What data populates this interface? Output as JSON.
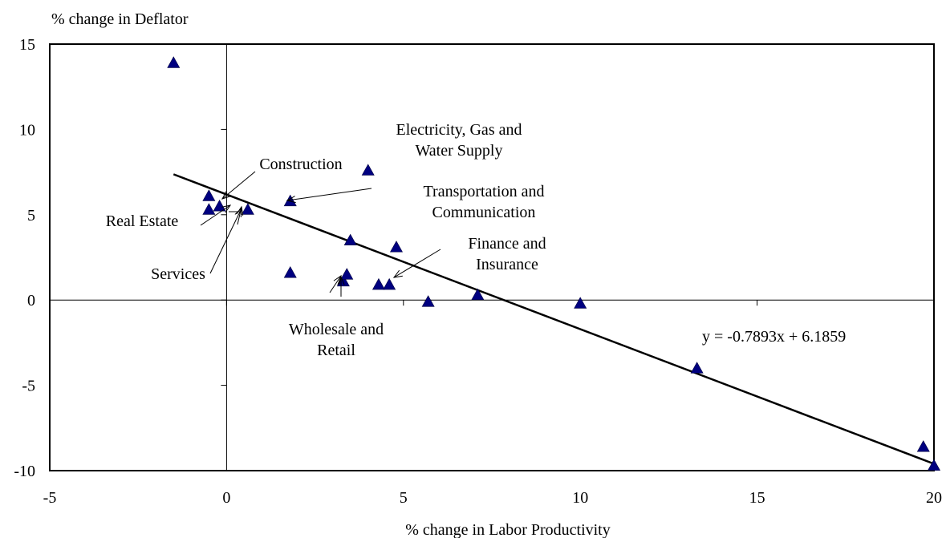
{
  "chart_data": {
    "type": "scatter",
    "title": "",
    "xlabel": "% change in Labor Productivity",
    "ylabel": "% change in Deflator",
    "xlim": [
      -5,
      20
    ],
    "ylim": [
      -10,
      15
    ],
    "x_ticks": [
      -5,
      0,
      5,
      10,
      15,
      20
    ],
    "y_ticks": [
      -10,
      -5,
      0,
      5,
      10,
      15
    ],
    "x_tick_labels": [
      "-5",
      "0",
      "5",
      "10",
      "15",
      "20"
    ],
    "y_tick_labels": [
      "-10",
      "-5",
      "0",
      "5",
      "10",
      "15"
    ],
    "grid": false,
    "legend": "none",
    "marker": "triangle",
    "marker_color": "#000080",
    "series": [
      {
        "points": [
          {
            "x": -1.5,
            "y": 13.9
          },
          {
            "x": -0.5,
            "y": 6.1
          },
          {
            "x": -0.5,
            "y": 5.3
          },
          {
            "x": -0.2,
            "y": 5.5
          },
          {
            "x": 0.6,
            "y": 5.3
          },
          {
            "x": 1.8,
            "y": 5.8
          },
          {
            "x": 1.8,
            "y": 1.6
          },
          {
            "x": 3.3,
            "y": 1.1
          },
          {
            "x": 3.4,
            "y": 1.5
          },
          {
            "x": 3.5,
            "y": 3.5
          },
          {
            "x": 4.0,
            "y": 7.6
          },
          {
            "x": 4.3,
            "y": 0.9
          },
          {
            "x": 4.6,
            "y": 0.9
          },
          {
            "x": 4.8,
            "y": 3.1
          },
          {
            "x": 5.7,
            "y": -0.1
          },
          {
            "x": 7.1,
            "y": 0.3
          },
          {
            "x": 10.0,
            "y": -0.2
          },
          {
            "x": 13.3,
            "y": -4.0
          },
          {
            "x": 19.7,
            "y": -8.6
          },
          {
            "x": 20.0,
            "y": -9.7
          }
        ]
      }
    ],
    "trendline": {
      "slope": -0.7893,
      "intercept": 6.1859,
      "x_range": [
        -1.5,
        20.0
      ],
      "equation_label": "y = -0.7893x + 6.1859"
    },
    "annotations": [
      {
        "lines": [
          "Electricity, Gas and",
          "Water Supply"
        ]
      },
      {
        "lines": [
          "Construction"
        ]
      },
      {
        "lines": [
          "Transportation and",
          "Communication"
        ]
      },
      {
        "lines": [
          "Real Estate"
        ]
      },
      {
        "lines": [
          "Finance and",
          "Insurance"
        ]
      },
      {
        "lines": [
          "Services"
        ]
      },
      {
        "lines": [
          "Wholesale and",
          "Retail"
        ]
      }
    ]
  }
}
